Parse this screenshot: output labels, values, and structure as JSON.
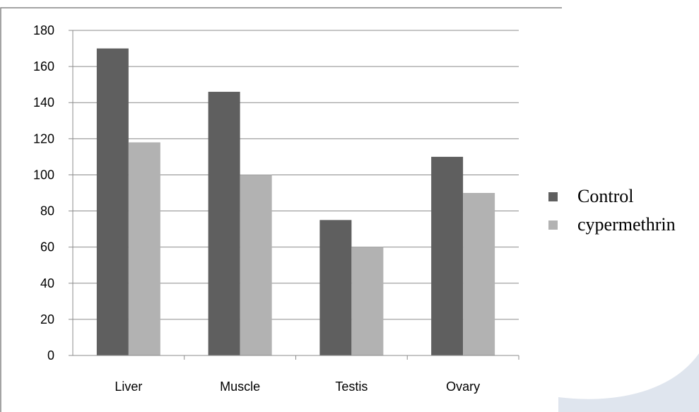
{
  "chart_data": {
    "type": "bar",
    "title": "",
    "xlabel": "",
    "ylabel": "",
    "categories": [
      "Liver",
      "Muscle",
      "Testis",
      "Ovary"
    ],
    "series": [
      {
        "name": "Control",
        "values": [
          170,
          146,
          75,
          110
        ],
        "color": "#5f5f5f"
      },
      {
        "name": "cypermethrin",
        "values": [
          118,
          100,
          60,
          90
        ],
        "color": "#b2b2b2"
      }
    ],
    "ylim": [
      0,
      180
    ],
    "yticks": [
      "0",
      "20",
      "40",
      "60",
      "80",
      "100",
      "120",
      "140",
      "160",
      "180"
    ],
    "grid": true,
    "legend_position": "right"
  },
  "colors": {
    "grid": "#8c8c8c",
    "axis": "#8c8c8c",
    "frame": "#868686",
    "decoration": "#cfd8e6"
  }
}
